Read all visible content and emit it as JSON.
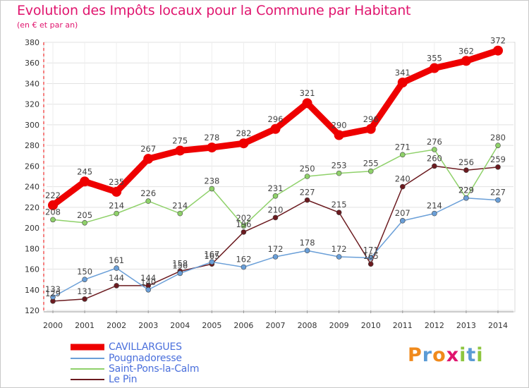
{
  "title": "Evolution des Impôts locaux pour la Commune par Habitant",
  "subtitle": "(en € et par an)",
  "logo": {
    "letters": [
      "P",
      "r",
      "o",
      "x",
      "i",
      "t",
      "i"
    ],
    "colors": [
      "#f08a1c",
      "#5b9bd5",
      "#f08a1c",
      "#e0156e",
      "#8dc63f",
      "#5b9bd5",
      "#8dc63f"
    ]
  },
  "chart_data": {
    "type": "line",
    "title": "Evolution des Impôts locaux pour la Commune par Habitant",
    "subtitle": "(en € et par an)",
    "xlabel": "",
    "ylabel": "",
    "x": [
      "2000",
      "2001",
      "2002",
      "2003",
      "2004",
      "2005",
      "2006",
      "2007",
      "2008",
      "2009",
      "2010",
      "2011",
      "2012",
      "2013",
      "2014"
    ],
    "ylim": [
      120,
      380
    ],
    "yticks": [
      "120",
      "140",
      "160",
      "180",
      "200",
      "220",
      "240",
      "260",
      "280",
      "300",
      "320",
      "340",
      "360",
      "380"
    ],
    "grid": true,
    "legend_position": "bottom-left",
    "series": [
      {
        "name": "Le Pin",
        "color": "#6b1a1f",
        "values": [
          129,
          131,
          144,
          144,
          158,
          165,
          196,
          210,
          227,
          215,
          165,
          240,
          260,
          256,
          259
        ],
        "labels": [
          "129",
          "131",
          "144",
          "144",
          "158",
          "165",
          "196",
          "210",
          "227",
          "215",
          "165",
          "240",
          "260",
          "256",
          "259"
        ]
      },
      {
        "name": "Saint-Pons-la-Calm",
        "color": "#8fd16a",
        "values": [
          208,
          205,
          214,
          226,
          214,
          238,
          202,
          231,
          250,
          253,
          255,
          271,
          276,
          229,
          280
        ],
        "labels": [
          "208",
          "205",
          "214",
          "226",
          "214",
          "238",
          "202",
          "231",
          "250",
          "253",
          "255",
          "271",
          "276",
          "229",
          "280"
        ]
      },
      {
        "name": "Pougnadoresse",
        "color": "#6a9fd8",
        "values": [
          133,
          150,
          161,
          140,
          156,
          167,
          162,
          172,
          178,
          172,
          171,
          207,
          214,
          229,
          227
        ],
        "labels": [
          "133",
          "150",
          "161",
          "140",
          "156",
          "167",
          "162",
          "172",
          "178",
          "172",
          "171",
          "207",
          "214",
          "229",
          "227"
        ]
      },
      {
        "name": "CAVILLARGUES",
        "color": "#ee0000",
        "values": [
          222,
          245,
          235,
          267,
          275,
          278,
          282,
          296,
          321,
          290,
          296,
          341,
          355,
          362,
          372
        ],
        "labels": [
          "222",
          "245",
          "235",
          "267",
          "275",
          "278",
          "282",
          "296",
          "321",
          "290",
          "296",
          "341",
          "355",
          "362",
          "372"
        ]
      }
    ],
    "legend": [
      "CAVILLARGUES",
      "Pougnadoresse",
      "Saint-Pons-la-Calm",
      "Le Pin"
    ]
  }
}
